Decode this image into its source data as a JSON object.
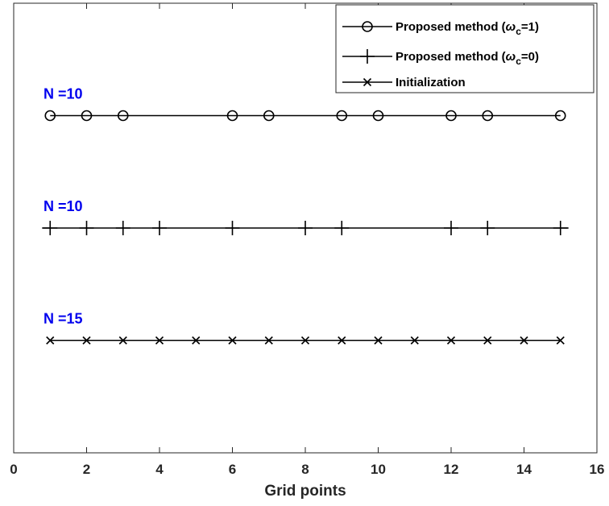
{
  "chart_data": {
    "type": "scatter",
    "title": "",
    "xlabel": "Grid points",
    "ylabel": "",
    "xlim": [
      0,
      16
    ],
    "ylim": [
      0,
      4
    ],
    "xticks": [
      0,
      2,
      4,
      6,
      8,
      10,
      12,
      14,
      16
    ],
    "grid": false,
    "legend_position": "top-right",
    "series": [
      {
        "name": "Proposed method (ωc=1)",
        "name_parts": {
          "prefix": "Proposed method (",
          "symbol": "ω",
          "subscript": "c",
          "suffix": "=1)"
        },
        "marker": "circle",
        "level": 3,
        "label": "N =10",
        "x": [
          1,
          2,
          3,
          6,
          7,
          9,
          10,
          12,
          13,
          15
        ]
      },
      {
        "name": "Proposed method (ωc=0)",
        "name_parts": {
          "prefix": "Proposed method (",
          "symbol": "ω",
          "subscript": "c",
          "suffix": "=0)"
        },
        "marker": "plus",
        "level": 2,
        "label": "N =10",
        "x": [
          1,
          2,
          3,
          4,
          6,
          8,
          9,
          12,
          13,
          15
        ]
      },
      {
        "name": "Initialization",
        "marker": "x",
        "level": 1,
        "label": "N =15",
        "x": [
          1,
          2,
          3,
          4,
          5,
          6,
          7,
          8,
          9,
          10,
          11,
          12,
          13,
          14,
          15
        ]
      }
    ],
    "colors": {
      "series": "#000000",
      "annotation": "#0000ee",
      "axis": "#262626"
    }
  }
}
